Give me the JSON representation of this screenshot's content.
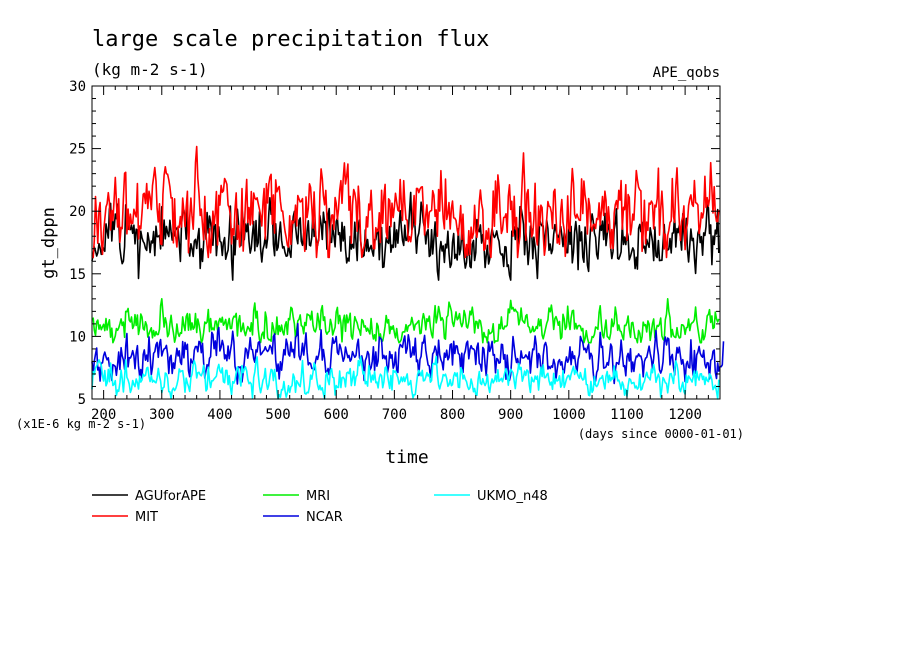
{
  "chart_data": {
    "type": "line",
    "title": "large scale precipitation flux",
    "subtitle": "(kg m-2 s-1)",
    "annotation": "APE_qobs",
    "xlabel": "time",
    "ylabel": "gt_dppn",
    "x_unit": "(days since 0000-01-01)",
    "y_unit": "(x1E-6 kg m-2 s-1)",
    "xlim": [
      180,
      1260
    ],
    "ylim": [
      5,
      30
    ],
    "x_ticks": [
      200,
      300,
      400,
      500,
      600,
      700,
      800,
      900,
      1000,
      1100,
      1200
    ],
    "y_ticks": [
      5,
      10,
      15,
      20,
      25,
      30
    ],
    "grid": false,
    "legend_position": "below-left",
    "series": [
      {
        "name": "AGUforAPE",
        "color": "#000000",
        "mean": 17.8,
        "amp": 1.5,
        "min": 14.5,
        "max": 21.5,
        "x_start": 180,
        "x_end": 1258,
        "step": 2,
        "seed": 11
      },
      {
        "name": "MIT",
        "color": "#ff0000",
        "mean": 19.8,
        "amp": 1.9,
        "min": 16.3,
        "max": 25.3,
        "x_start": 180,
        "x_end": 1258,
        "step": 2,
        "seed": 23
      },
      {
        "name": "MRI",
        "color": "#00ee00",
        "mean": 10.9,
        "amp": 0.8,
        "min": 9.5,
        "max": 13.8,
        "x_start": 180,
        "x_end": 1258,
        "step": 2,
        "seed": 37
      },
      {
        "name": "NCAR",
        "color": "#0000dd",
        "mean": 8.4,
        "amp": 1.0,
        "min": 6.2,
        "max": 11.8,
        "x_start": 180,
        "x_end": 1266,
        "step": 2,
        "seed": 51
      },
      {
        "name": "UKMO_n48",
        "color": "#00ffff",
        "mean": 6.6,
        "amp": 0.7,
        "min": 5.0,
        "max": 8.4,
        "x_start": 180,
        "x_end": 1258,
        "step": 2,
        "seed": 73
      }
    ]
  }
}
